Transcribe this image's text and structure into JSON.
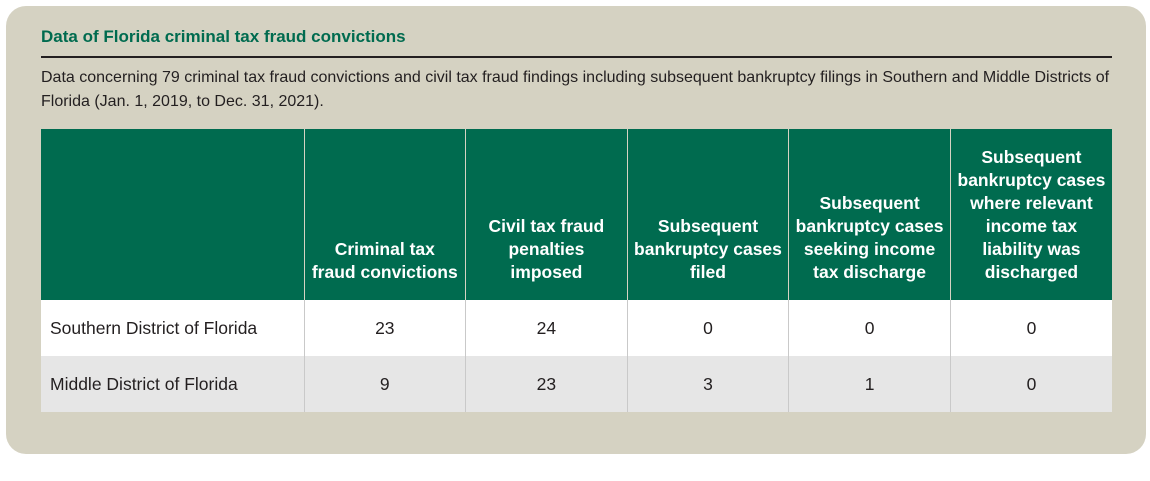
{
  "title": "Data of Florida criminal tax fraud convictions",
  "description": "Data concerning 79 criminal tax fraud convictions and civil tax fraud findings including subsequent bankruptcy filings in Southern and Middle Districts of Florida (Jan. 1, 2019, to Dec. 31, 2021).",
  "table": {
    "headers": [
      "",
      "Criminal tax fraud convictions",
      "Civil tax fraud penalties imposed",
      "Subsequent bankruptcy cases filed",
      "Subsequent bankruptcy cases seeking income tax discharge",
      "Subsequent bankruptcy cases where relevant income tax liability was discharged"
    ],
    "rows": [
      [
        "Southern District of Florida",
        "23",
        "24",
        "0",
        "0",
        "0"
      ],
      [
        "Middle District of Florida",
        "9",
        "23",
        "3",
        "1",
        "0"
      ]
    ]
  },
  "colors": {
    "panel_background": "#d5d2c2",
    "header_background": "#006b4f",
    "title_color": "#006b4f",
    "alt_row_background": "#e6e6e6"
  }
}
